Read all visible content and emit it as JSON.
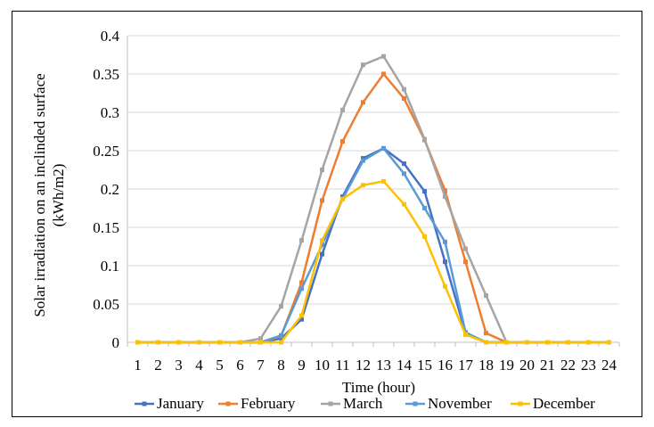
{
  "chart_data": {
    "type": "line",
    "title": "",
    "xlabel": "Time (hour)",
    "ylabel": "Solar irradiation on an inclinded surface (kWh/m2)",
    "ylabel_lines": [
      "Solar irradiation on an inclinded surface",
      "(kWh/m2)"
    ],
    "categories": [
      "1",
      "2",
      "3",
      "4",
      "5",
      "6",
      "7",
      "8",
      "9",
      "10",
      "11",
      "12",
      "13",
      "14",
      "15",
      "16",
      "17",
      "18",
      "19",
      "20",
      "21",
      "22",
      "23",
      "24"
    ],
    "y_ticks": [
      "0",
      "0.05",
      "0.1",
      "0.15",
      "0.2",
      "0.25",
      "0.3",
      "0.35",
      "0.4"
    ],
    "ylim": [
      0,
      0.4
    ],
    "grid": "horizontal",
    "legend_position": "bottom",
    "series": [
      {
        "name": "January",
        "color": "#4472C4",
        "values": [
          0,
          0,
          0,
          0,
          0,
          0,
          0,
          0.005,
          0.03,
          0.115,
          0.19,
          0.24,
          0.253,
          0.233,
          0.197,
          0.105,
          0.012,
          0,
          0,
          0,
          0,
          0,
          0,
          0
        ]
      },
      {
        "name": "February",
        "color": "#ED7D31",
        "values": [
          0,
          0,
          0,
          0,
          0,
          0,
          0,
          0.008,
          0.078,
          0.185,
          0.262,
          0.313,
          0.35,
          0.318,
          0.264,
          0.198,
          0.105,
          0.012,
          0,
          0,
          0,
          0,
          0,
          0
        ]
      },
      {
        "name": "March",
        "color": "#A5A5A5",
        "values": [
          0,
          0,
          0,
          0,
          0,
          0,
          0.005,
          0.047,
          0.133,
          0.225,
          0.303,
          0.362,
          0.373,
          0.33,
          0.265,
          0.19,
          0.122,
          0.061,
          0,
          0,
          0,
          0,
          0,
          0
        ]
      },
      {
        "name": "November",
        "color": "#5B9BD5",
        "values": [
          0,
          0,
          0,
          0,
          0,
          0,
          0,
          0.009,
          0.07,
          0.127,
          0.187,
          0.237,
          0.253,
          0.22,
          0.175,
          0.131,
          0.013,
          0,
          0,
          0,
          0,
          0,
          0,
          0
        ]
      },
      {
        "name": "December",
        "color": "#FFC000",
        "values": [
          0,
          0,
          0,
          0,
          0,
          0,
          0,
          0,
          0.035,
          0.133,
          0.187,
          0.205,
          0.21,
          0.18,
          0.138,
          0.073,
          0.01,
          0,
          0,
          0,
          0,
          0,
          0,
          0
        ]
      }
    ]
  }
}
